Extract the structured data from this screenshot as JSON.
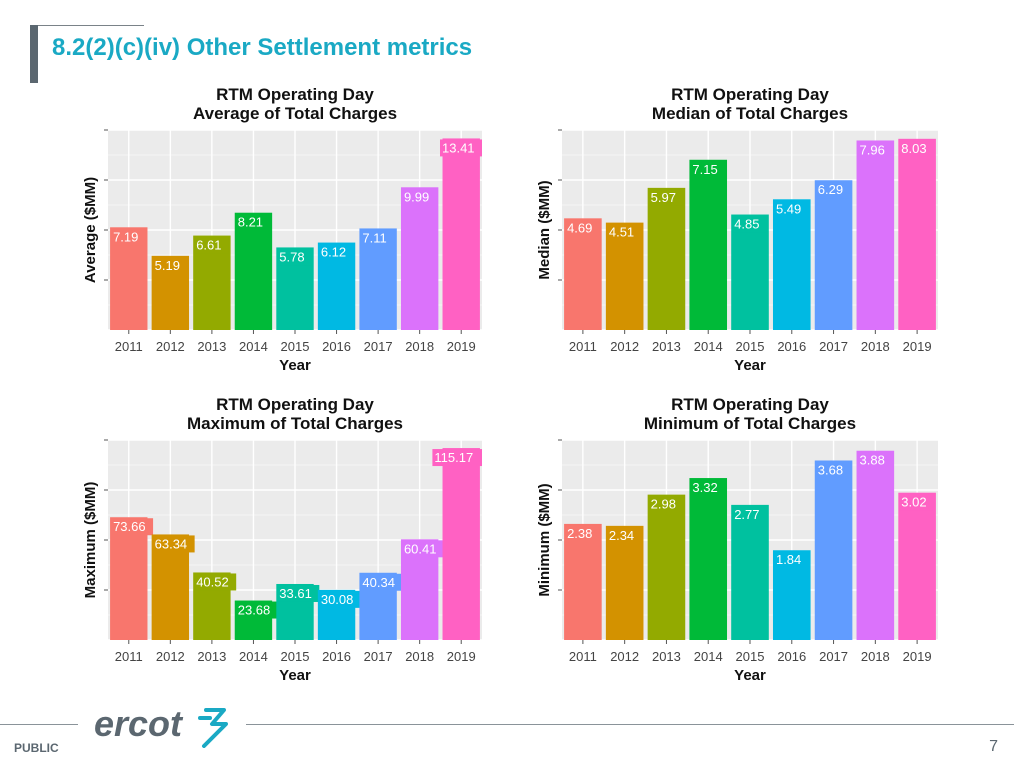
{
  "page": {
    "title": "8.2(2)(c)(iv) Other Settlement metrics",
    "footer_label": "PUBLIC",
    "page_number": "7",
    "logo_text": "ercot"
  },
  "colors": {
    "title": "#1aa9c4",
    "accent_bar": "#5b6770",
    "panel_bg": "#ebebeb",
    "bar_palette": [
      "#f8766d",
      "#d39200",
      "#93aa00",
      "#00ba38",
      "#00c19f",
      "#00b9e3",
      "#619cff",
      "#db72fb",
      "#ff61c3"
    ]
  },
  "chart_data": [
    {
      "type": "bar",
      "title": "RTM Operating Day",
      "subtitle": "Average of Total Charges",
      "xlabel": "Year",
      "ylabel": "Average ($MM)",
      "categories": [
        "2011",
        "2012",
        "2013",
        "2014",
        "2015",
        "2016",
        "2017",
        "2018",
        "2019"
      ],
      "values": [
        7.19,
        5.19,
        6.61,
        8.21,
        5.78,
        6.12,
        7.11,
        9.99,
        13.41
      ],
      "value_labels": [
        "7.19",
        "5.19",
        "6.61",
        "8.21",
        "5.78",
        "6.12",
        "7.11",
        "9.99",
        "13.41"
      ],
      "ylim": [
        0,
        14
      ],
      "grid": true,
      "legend": "none"
    },
    {
      "type": "bar",
      "title": "RTM Operating Day",
      "subtitle": "Median of Total Charges",
      "xlabel": "Year",
      "ylabel": "Median ($MM)",
      "categories": [
        "2011",
        "2012",
        "2013",
        "2014",
        "2015",
        "2016",
        "2017",
        "2018",
        "2019"
      ],
      "values": [
        4.69,
        4.51,
        5.97,
        7.15,
        4.85,
        5.49,
        6.29,
        7.96,
        8.03
      ],
      "value_labels": [
        "4.69",
        "4.51",
        "5.97",
        "7.15",
        "4.85",
        "5.49",
        "6.29",
        "7.96",
        "8.03"
      ],
      "ylim": [
        0,
        8.4
      ],
      "grid": true,
      "legend": "none"
    },
    {
      "type": "bar",
      "title": "RTM Operating Day",
      "subtitle": "Maximum of Total Charges",
      "xlabel": "Year",
      "ylabel": "Maximum ($MM)",
      "categories": [
        "2011",
        "2012",
        "2013",
        "2014",
        "2015",
        "2016",
        "2017",
        "2018",
        "2019"
      ],
      "values": [
        73.66,
        63.34,
        40.52,
        23.68,
        33.61,
        30.08,
        40.34,
        60.41,
        115.17
      ],
      "value_labels": [
        "73.66",
        "63.34",
        "40.52",
        "23.68",
        "33.61",
        "30.08",
        "40.34",
        "60.41",
        "115.17"
      ],
      "ylim": [
        0,
        120
      ],
      "grid": true,
      "legend": "none"
    },
    {
      "type": "bar",
      "title": "RTM Operating Day",
      "subtitle": "Minimum of Total Charges",
      "xlabel": "Year",
      "ylabel": "Minimum ($MM)",
      "categories": [
        "2011",
        "2012",
        "2013",
        "2014",
        "2015",
        "2016",
        "2017",
        "2018",
        "2019"
      ],
      "values": [
        2.38,
        2.34,
        2.98,
        3.32,
        2.77,
        1.84,
        3.68,
        3.88,
        3.02
      ],
      "value_labels": [
        "2.38",
        "2.34",
        "2.98",
        "3.32",
        "2.77",
        "1.84",
        "3.68",
        "3.88",
        "3.02"
      ],
      "ylim": [
        0,
        4.1
      ],
      "grid": true,
      "legend": "none"
    }
  ]
}
